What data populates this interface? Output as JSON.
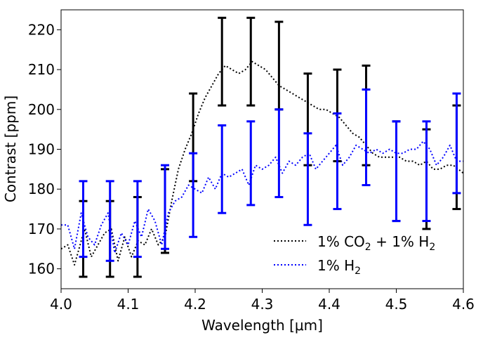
{
  "chart_data": {
    "type": "line",
    "title": "",
    "xlabel": "Wavelength [μm]",
    "ylabel": "Contrast [ppm]",
    "xlim": [
      4.0,
      4.6
    ],
    "ylim": [
      155,
      225
    ],
    "xticks": [
      4.0,
      4.1,
      4.2,
      4.3,
      4.4,
      4.5,
      4.6
    ],
    "xtick_labels": [
      "4.0",
      "4.1",
      "4.2",
      "4.3",
      "4.4",
      "4.5",
      "4.6"
    ],
    "yticks": [
      160,
      170,
      180,
      190,
      200,
      210,
      220
    ],
    "ytick_labels": [
      "160",
      "170",
      "180",
      "190",
      "200",
      "210",
      "220"
    ],
    "legend_position": "lower-right",
    "series": [
      {
        "name": "1% CO2 + 1% H2",
        "legend_parts": [
          "1% CO",
          "2",
          " + 1% H",
          "2"
        ],
        "color": "#000000",
        "line_style": "dotted",
        "x": [
          4.0,
          4.01,
          4.02,
          4.025,
          4.035,
          4.045,
          4.055,
          4.065,
          4.075,
          4.085,
          4.095,
          4.105,
          4.115,
          4.125,
          4.135,
          4.145,
          4.155,
          4.165,
          4.175,
          4.185,
          4.195,
          4.205,
          4.215,
          4.225,
          4.235,
          4.245,
          4.255,
          4.265,
          4.275,
          4.285,
          4.295,
          4.305,
          4.315,
          4.325,
          4.335,
          4.345,
          4.355,
          4.365,
          4.375,
          4.385,
          4.395,
          4.405,
          4.415,
          4.425,
          4.435,
          4.445,
          4.455,
          4.465,
          4.475,
          4.485,
          4.495,
          4.505,
          4.515,
          4.525,
          4.535,
          4.545,
          4.555,
          4.565,
          4.575,
          4.585,
          4.6
        ],
        "y": [
          165,
          166,
          161,
          164,
          170,
          163,
          166,
          169,
          170,
          162,
          168,
          163,
          167,
          166,
          170,
          166,
          168,
          177,
          185,
          190,
          194,
          199,
          203,
          206,
          209,
          211,
          210,
          209,
          210,
          212,
          211,
          210,
          208,
          206,
          205,
          204,
          203,
          202,
          201,
          200,
          200,
          199,
          198,
          196,
          194,
          193,
          191,
          189,
          188,
          188,
          188,
          188,
          187,
          187,
          186,
          187,
          185,
          185,
          186,
          186,
          184
        ]
      },
      {
        "name": "1% H2",
        "legend_parts": [
          "1% H",
          "2"
        ],
        "color": "#0000ff",
        "line_style": "dotted",
        "x": [
          4.0,
          4.01,
          4.02,
          4.03,
          4.04,
          4.05,
          4.06,
          4.07,
          4.08,
          4.09,
          4.1,
          4.11,
          4.12,
          4.13,
          4.14,
          4.15,
          4.16,
          4.17,
          4.18,
          4.19,
          4.2,
          4.21,
          4.22,
          4.23,
          4.24,
          4.25,
          4.26,
          4.27,
          4.28,
          4.29,
          4.3,
          4.31,
          4.32,
          4.33,
          4.34,
          4.35,
          4.36,
          4.37,
          4.38,
          4.39,
          4.4,
          4.41,
          4.42,
          4.43,
          4.44,
          4.45,
          4.46,
          4.47,
          4.48,
          4.49,
          4.5,
          4.51,
          4.52,
          4.53,
          4.54,
          4.55,
          4.56,
          4.57,
          4.58,
          4.59,
          4.6
        ],
        "y": [
          171,
          171,
          165,
          174,
          168,
          166,
          171,
          174,
          164,
          169,
          166,
          172,
          168,
          175,
          172,
          166,
          174,
          177,
          178,
          181,
          180,
          179,
          183,
          180,
          184,
          183,
          184,
          185,
          181,
          186,
          185,
          186,
          188,
          184,
          187,
          186,
          188,
          189,
          185,
          187,
          189,
          191,
          186,
          188,
          191,
          190,
          189,
          190,
          189,
          190,
          189,
          189,
          190,
          190,
          192,
          190,
          186,
          188,
          191,
          187,
          187
        ]
      }
    ],
    "error_bars": [
      {
        "name": "1% CO2 + 1% H2 binned",
        "color": "#000000",
        "x": [
          4.033,
          4.073,
          4.114,
          4.155,
          4.197,
          4.24,
          4.283,
          4.325,
          4.368,
          4.412,
          4.455,
          4.5,
          4.545,
          4.59
        ],
        "low": [
          158,
          158,
          158,
          164,
          182,
          201,
          201,
          200,
          186,
          187,
          186,
          172,
          170,
          175
        ],
        "high": [
          177,
          177,
          178,
          185,
          204,
          223,
          223,
          222,
          209,
          210,
          211,
          197,
          195,
          201
        ]
      },
      {
        "name": "1% H2 binned",
        "color": "#0000ff",
        "x": [
          4.033,
          4.073,
          4.114,
          4.155,
          4.197,
          4.24,
          4.283,
          4.325,
          4.368,
          4.412,
          4.455,
          4.5,
          4.545,
          4.59
        ],
        "low": [
          163,
          162,
          163,
          165,
          168,
          174,
          176,
          178,
          171,
          175,
          181,
          172,
          172,
          179
        ],
        "high": [
          182,
          182,
          182,
          186,
          189,
          196,
          197,
          200,
          194,
          199,
          205,
          197,
          197,
          204
        ]
      }
    ]
  }
}
